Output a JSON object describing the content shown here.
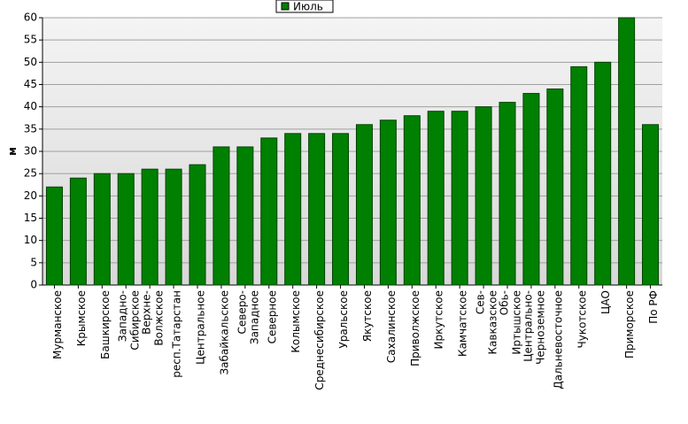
{
  "chart_data": {
    "type": "bar",
    "y_label": "м",
    "categories": [
      "Мурманское",
      "Крымское",
      "Башкирское",
      "Западно-\nСибирское",
      "Верхне-\nВолжское",
      "респ.Татарстан",
      "Центральное",
      "Забайкальское",
      "Северо-\nЗападное",
      "Северное",
      "Колымское",
      "Среднесибирское",
      "Уральское",
      "Якутское",
      "Сахалинское",
      "Приволжское",
      "Иркутское",
      "Камчатское",
      "Сев-\nКавказское",
      "Обь-\nИртышское",
      "Центрально-\nЧерноземное",
      "Дальневосточное",
      "Чукотское",
      "ЦАО",
      "Приморское",
      "По РФ"
    ],
    "series": [
      {
        "name": "Июль",
        "color": "#008000",
        "values": [
          22,
          24,
          25,
          25,
          26,
          26,
          27,
          31,
          31,
          33,
          34,
          34,
          34,
          36,
          37,
          38,
          39,
          39,
          40,
          41,
          43,
          44,
          49,
          50,
          60,
          36
        ]
      }
    ],
    "ylim": [
      0,
      60
    ],
    "yticks": [
      0,
      5,
      10,
      15,
      20,
      25,
      30,
      35,
      40,
      45,
      50,
      55,
      60
    ],
    "grid": true
  }
}
